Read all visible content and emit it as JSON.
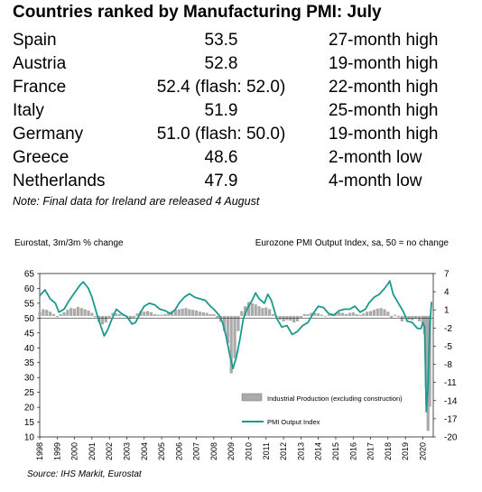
{
  "title": "Countries ranked by Manufacturing PMI: July",
  "table": {
    "rows": [
      {
        "country": "Spain",
        "pmi": "53.5",
        "status": "27-month high"
      },
      {
        "country": "Austria",
        "pmi": "52.8",
        "status": "19-month high"
      },
      {
        "country": "France",
        "pmi": "52.4 (flash: 52.0)",
        "status": "22-month high"
      },
      {
        "country": "Italy",
        "pmi": "51.9",
        "status": "25-month high"
      },
      {
        "country": "Germany",
        "pmi": "51.0 (flash: 50.0)",
        "status": "19-month high"
      },
      {
        "country": "Greece",
        "pmi": "48.6",
        "status": "2-month low"
      },
      {
        "country": "Netherlands",
        "pmi": "47.9",
        "status": "4-month low"
      }
    ],
    "note": "Note: Final data for Ireland are released 4 August"
  },
  "source": "Source: IHS Markit, Eurostat",
  "chart_data": {
    "type": "bar+line",
    "left_axis_label": "Eurostat, 3m/3m % change",
    "right_axis_label": "Eurozone PMI Output Index, sa, 50 = no change",
    "left_axis": {
      "min": -20,
      "max": 7,
      "ticks": [
        7,
        4,
        1,
        -2,
        -5,
        -8,
        -11,
        -14,
        -17,
        -20
      ]
    },
    "right_axis": {
      "min": 10,
      "max": 65,
      "ticks": [
        65,
        60,
        55,
        50,
        45,
        40,
        35,
        30,
        25,
        20,
        15,
        10
      ]
    },
    "x_range": [
      1998,
      2020.6
    ],
    "x_ticks": [
      "1998",
      "1999",
      "2000",
      "2001",
      "2002",
      "2003",
      "2004",
      "2005",
      "2006",
      "2007",
      "2008",
      "2009",
      "2010",
      "2011",
      "2012",
      "2013",
      "2014",
      "2015",
      "2016",
      "2017",
      "2018",
      "2019",
      "2020"
    ],
    "legend": {
      "position": "lower-right",
      "items": [
        {
          "label": "Industrial Production (excluding construction)",
          "kind": "bar",
          "color": "#aaaaaa"
        },
        {
          "label": "PMI Output Index",
          "kind": "line",
          "color": "#1a9a8e"
        }
      ]
    },
    "reference_line": {
      "axis": "right",
      "value": 50
    },
    "series": [
      {
        "name": "PMI Output Index",
        "kind": "line",
        "axis": "right",
        "points": [
          [
            1998.0,
            57.5
          ],
          [
            1998.3,
            59.5
          ],
          [
            1998.6,
            56.5
          ],
          [
            1998.9,
            55
          ],
          [
            1999.1,
            52
          ],
          [
            1999.4,
            53
          ],
          [
            1999.7,
            56
          ],
          [
            2000.0,
            58.5
          ],
          [
            2000.3,
            61
          ],
          [
            2000.5,
            62.2
          ],
          [
            2000.8,
            60
          ],
          [
            2001.0,
            57
          ],
          [
            2001.3,
            51
          ],
          [
            2001.5,
            47.5
          ],
          [
            2001.7,
            44
          ],
          [
            2001.9,
            46
          ],
          [
            2002.1,
            49
          ],
          [
            2002.4,
            53
          ],
          [
            2002.7,
            51.5
          ],
          [
            2003.0,
            50.5
          ],
          [
            2003.3,
            48
          ],
          [
            2003.5,
            48.5
          ],
          [
            2003.8,
            52
          ],
          [
            2004.0,
            54
          ],
          [
            2004.3,
            55
          ],
          [
            2004.6,
            54.5
          ],
          [
            2004.9,
            53
          ],
          [
            2005.2,
            52.5
          ],
          [
            2005.5,
            51.5
          ],
          [
            2005.8,
            53
          ],
          [
            2006.0,
            55
          ],
          [
            2006.3,
            57
          ],
          [
            2006.6,
            58.2
          ],
          [
            2006.9,
            57
          ],
          [
            2007.2,
            56.5
          ],
          [
            2007.5,
            56
          ],
          [
            2007.8,
            54
          ],
          [
            2008.0,
            53
          ],
          [
            2008.3,
            51
          ],
          [
            2008.5,
            48.5
          ],
          [
            2008.7,
            44
          ],
          [
            2008.9,
            38
          ],
          [
            2009.1,
            33
          ],
          [
            2009.3,
            37
          ],
          [
            2009.5,
            43
          ],
          [
            2009.7,
            50
          ],
          [
            2009.9,
            53
          ],
          [
            2010.2,
            56
          ],
          [
            2010.4,
            58.5
          ],
          [
            2010.6,
            56.5
          ],
          [
            2010.9,
            55
          ],
          [
            2011.1,
            58
          ],
          [
            2011.3,
            56
          ],
          [
            2011.6,
            50
          ],
          [
            2011.9,
            47
          ],
          [
            2012.2,
            47.5
          ],
          [
            2012.5,
            44.5
          ],
          [
            2012.8,
            45.5
          ],
          [
            2013.1,
            47.5
          ],
          [
            2013.4,
            48.5
          ],
          [
            2013.7,
            51.5
          ],
          [
            2014.0,
            54
          ],
          [
            2014.3,
            53.5
          ],
          [
            2014.6,
            51.5
          ],
          [
            2014.9,
            51
          ],
          [
            2015.2,
            52.5
          ],
          [
            2015.5,
            53
          ],
          [
            2015.8,
            53
          ],
          [
            2016.1,
            54
          ],
          [
            2016.4,
            52
          ],
          [
            2016.7,
            53
          ],
          [
            2016.9,
            55
          ],
          [
            2017.2,
            57
          ],
          [
            2017.5,
            58
          ],
          [
            2017.8,
            60
          ],
          [
            2018.0,
            61.5
          ],
          [
            2018.1,
            62.5
          ],
          [
            2018.3,
            58
          ],
          [
            2018.6,
            55
          ],
          [
            2018.9,
            52
          ],
          [
            2019.1,
            49
          ],
          [
            2019.4,
            48.5
          ],
          [
            2019.7,
            46.5
          ],
          [
            2019.9,
            46.5
          ],
          [
            2020.0,
            48.5
          ],
          [
            2020.1,
            47
          ],
          [
            2020.2,
            18.5
          ],
          [
            2020.3,
            27
          ],
          [
            2020.4,
            47
          ],
          [
            2020.5,
            55.5
          ]
        ]
      },
      {
        "name": "Industrial Production (excluding construction)",
        "kind": "bar",
        "axis": "left",
        "points": [
          [
            1998.0,
            0.6
          ],
          [
            1998.2,
            1.1
          ],
          [
            1998.4,
            1
          ],
          [
            1998.6,
            0.7
          ],
          [
            1998.8,
            0.3
          ],
          [
            1999.0,
            -0.2
          ],
          [
            1999.2,
            0.3
          ],
          [
            1999.4,
            0.6
          ],
          [
            1999.6,
            1
          ],
          [
            1999.8,
            1.3
          ],
          [
            2000.0,
            1.2
          ],
          [
            2000.2,
            1.5
          ],
          [
            2000.4,
            1.3
          ],
          [
            2000.6,
            1.1
          ],
          [
            2000.8,
            0.9
          ],
          [
            2001.0,
            0.5
          ],
          [
            2001.2,
            -0.2
          ],
          [
            2001.4,
            -1
          ],
          [
            2001.6,
            -1.4
          ],
          [
            2001.8,
            -1.1
          ],
          [
            2002.0,
            -0.3
          ],
          [
            2002.2,
            0.5
          ],
          [
            2002.4,
            0.4
          ],
          [
            2002.6,
            0.3
          ],
          [
            2002.8,
            0.1
          ],
          [
            2003.0,
            -0.2
          ],
          [
            2003.2,
            -0.5
          ],
          [
            2003.4,
            -0.3
          ],
          [
            2003.6,
            0.4
          ],
          [
            2003.8,
            0.8
          ],
          [
            2004.0,
            0.7
          ],
          [
            2004.2,
            0.8
          ],
          [
            2004.4,
            0.6
          ],
          [
            2004.6,
            0.3
          ],
          [
            2004.8,
            0.2
          ],
          [
            2005.0,
            0.2
          ],
          [
            2005.2,
            0.3
          ],
          [
            2005.4,
            0.6
          ],
          [
            2005.6,
            0.8
          ],
          [
            2005.8,
            1
          ],
          [
            2006.0,
            1.1
          ],
          [
            2006.2,
            1.2
          ],
          [
            2006.4,
            1.3
          ],
          [
            2006.6,
            1.1
          ],
          [
            2006.8,
            1
          ],
          [
            2007.0,
            0.9
          ],
          [
            2007.2,
            0.7
          ],
          [
            2007.4,
            0.6
          ],
          [
            2007.6,
            0.5
          ],
          [
            2007.8,
            0.3
          ],
          [
            2008.0,
            0.3
          ],
          [
            2008.2,
            -0.3
          ],
          [
            2008.4,
            -1
          ],
          [
            2008.6,
            -2.5
          ],
          [
            2008.8,
            -4.5
          ],
          [
            2009.0,
            -9.5
          ],
          [
            2009.2,
            -7
          ],
          [
            2009.4,
            -2.5
          ],
          [
            2009.6,
            0.8
          ],
          [
            2009.8,
            1.6
          ],
          [
            2010.0,
            2.3
          ],
          [
            2010.2,
            2.1
          ],
          [
            2010.4,
            1.9
          ],
          [
            2010.6,
            1.6
          ],
          [
            2010.8,
            1.3
          ],
          [
            2011.0,
            1.4
          ],
          [
            2011.2,
            1.1
          ],
          [
            2011.4,
            0.3
          ],
          [
            2011.6,
            -0.2
          ],
          [
            2011.8,
            -0.6
          ],
          [
            2012.0,
            -0.9
          ],
          [
            2012.2,
            -0.7
          ],
          [
            2012.4,
            -0.8
          ],
          [
            2012.6,
            -1.1
          ],
          [
            2012.8,
            -0.9
          ],
          [
            2013.0,
            -0.3
          ],
          [
            2013.2,
            0.3
          ],
          [
            2013.4,
            0.3
          ],
          [
            2013.6,
            0.5
          ],
          [
            2013.8,
            0.5
          ],
          [
            2014.0,
            0.4
          ],
          [
            2014.2,
            0.2
          ],
          [
            2014.4,
            -0.1
          ],
          [
            2014.6,
            0.2
          ],
          [
            2014.8,
            0.4
          ],
          [
            2015.0,
            0.5
          ],
          [
            2015.2,
            0.6
          ],
          [
            2015.4,
            0.5
          ],
          [
            2015.6,
            0.3
          ],
          [
            2015.8,
            0.5
          ],
          [
            2016.0,
            0.6
          ],
          [
            2016.2,
            0.3
          ],
          [
            2016.4,
            0.2
          ],
          [
            2016.6,
            0.4
          ],
          [
            2016.8,
            0.7
          ],
          [
            2017.0,
            0.8
          ],
          [
            2017.2,
            1
          ],
          [
            2017.4,
            1.2
          ],
          [
            2017.6,
            1.3
          ],
          [
            2017.8,
            1.1
          ],
          [
            2018.0,
            0.7
          ],
          [
            2018.2,
            -0.3
          ],
          [
            2018.4,
            0.2
          ],
          [
            2018.6,
            -0.2
          ],
          [
            2018.8,
            -0.9
          ],
          [
            2019.0,
            -0.4
          ],
          [
            2019.2,
            -0.6
          ],
          [
            2019.4,
            -0.7
          ],
          [
            2019.6,
            -0.5
          ],
          [
            2019.8,
            -0.9
          ],
          [
            2020.0,
            -1.2
          ],
          [
            2020.1,
            -3
          ],
          [
            2020.2,
            -12
          ],
          [
            2020.3,
            -19
          ],
          [
            2020.4,
            -15
          ]
        ]
      }
    ]
  }
}
